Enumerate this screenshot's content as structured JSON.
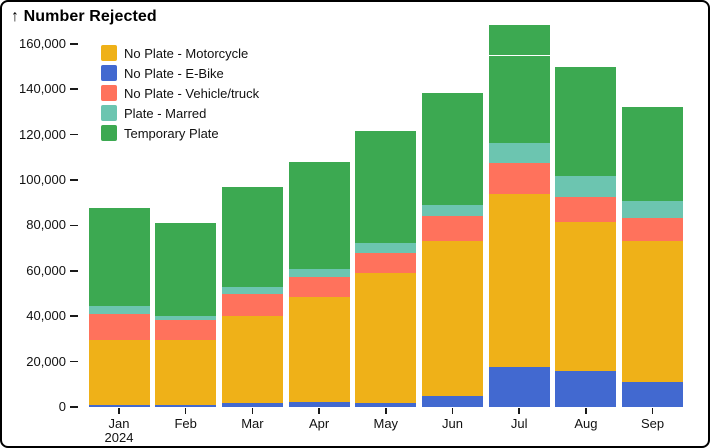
{
  "header": {
    "title": "↑ Number Rejected"
  },
  "chart_data": {
    "type": "bar",
    "stacked": true,
    "title": "Number Rejected",
    "ylabel": "Number Rejected",
    "xlabel": "",
    "categories": [
      "Jan",
      "Feb",
      "Mar",
      "Apr",
      "May",
      "Jun",
      "Jul",
      "Aug",
      "Sep"
    ],
    "x_axis_year": {
      "index": 0,
      "label": "2024"
    },
    "series": [
      {
        "name": "No Plate - Motorcycle",
        "color": "#efb118",
        "values": [
          28600,
          28600,
          38500,
          46500,
          57300,
          68300,
          76000,
          65600,
          62200
        ]
      },
      {
        "name": "No Plate - E-Bike",
        "color": "#4269d0",
        "values": [
          900,
          900,
          1600,
          2100,
          1900,
          4800,
          17800,
          16000,
          11100
        ]
      },
      {
        "name": "No Plate - Vehicle/truck",
        "color": "#ff725c",
        "values": [
          11400,
          8800,
          9600,
          8500,
          8500,
          11000,
          13800,
          11000,
          9800
        ]
      },
      {
        "name": "Plate - Marred",
        "color": "#6cc5b0",
        "values": [
          3500,
          1800,
          3100,
          3800,
          4700,
          4900,
          8600,
          9300,
          7800
        ]
      },
      {
        "name": "Temporary Plate",
        "color": "#3ca951",
        "values": [
          43400,
          41100,
          44300,
          47100,
          49200,
          49500,
          52300,
          47700,
          41400
        ]
      }
    ],
    "stack_order_bottom_to_top": [
      "No Plate - E-Bike",
      "No Plate - Motorcycle",
      "No Plate - Vehicle/truck",
      "Plate - Marred",
      "Temporary Plate"
    ],
    "totals": [
      87800,
      81200,
      97100,
      108000,
      121600,
      138500,
      168500,
      149600,
      132300
    ],
    "y_ticks": [
      {
        "value": 0,
        "label": "0"
      },
      {
        "value": 20000,
        "label": "20,000"
      },
      {
        "value": 40000,
        "label": "40,000"
      },
      {
        "value": 60000,
        "label": "60,000"
      },
      {
        "value": 80000,
        "label": "80,000"
      },
      {
        "value": 100000,
        "label": "100,000"
      },
      {
        "value": 120000,
        "label": "120,000"
      },
      {
        "value": 140000,
        "label": "140,000"
      },
      {
        "value": 160000,
        "label": "160,000"
      }
    ],
    "ylim": [
      0,
      170000
    ],
    "grid": false,
    "legend_position": "top-left",
    "annotations": [
      {
        "type": "white-divider",
        "category": "Jul",
        "series": "Temporary Plate",
        "value": 155200
      }
    ]
  }
}
